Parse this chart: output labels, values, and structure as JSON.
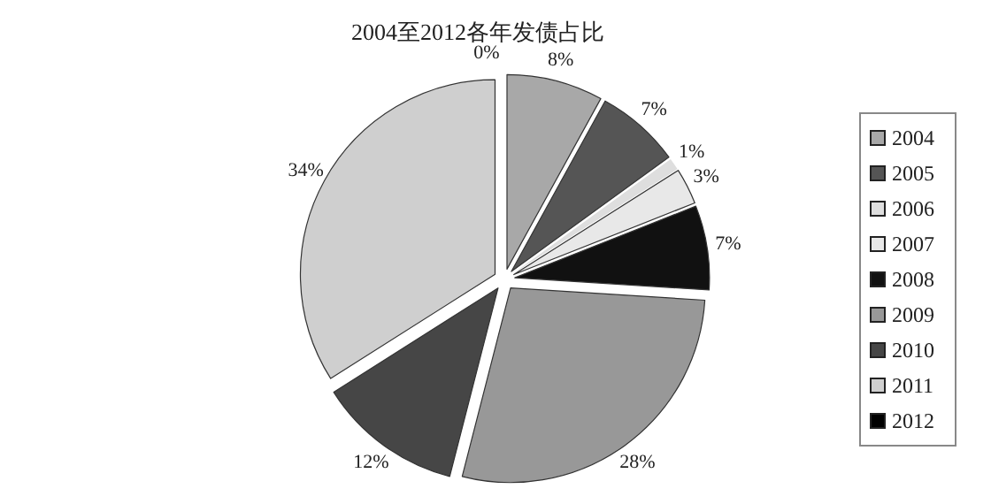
{
  "chart_data": {
    "type": "pie",
    "title": "2004至2012各年发债占比",
    "categories": [
      "2004",
      "2005",
      "2006",
      "2007",
      "2008",
      "2009",
      "2010",
      "2011",
      "2012"
    ],
    "values": [
      8,
      7,
      1,
      3,
      7,
      28,
      12,
      34,
      0
    ],
    "value_labels": [
      "8%",
      "7%",
      "1%",
      "3%",
      "7%",
      "28%",
      "12%",
      "34%",
      "0%"
    ],
    "colors": [
      "#a8a8a8",
      "#555555",
      "#dedede",
      "#e8e8e8",
      "#111111",
      "#989898",
      "#464646",
      "#cfcfcf",
      "#000000"
    ],
    "legend": "right"
  }
}
